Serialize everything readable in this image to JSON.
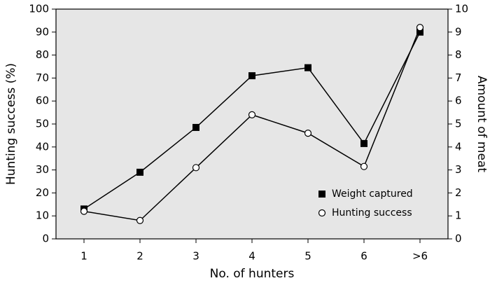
{
  "chart_data": {
    "type": "line",
    "x_label": "No. of hunters",
    "y_label": "Hunting success (%)",
    "y2_label": "Amount of meat",
    "categories": [
      "1",
      "2",
      "3",
      "4",
      "5",
      "6",
      ">6"
    ],
    "series": [
      {
        "name": "Weight captured",
        "color": "#000000",
        "marker": "square",
        "axis": "y2",
        "values": [
          1.3,
          2.9,
          4.85,
          7.1,
          7.45,
          4.15,
          9.0
        ]
      },
      {
        "name": "Hunting success",
        "color": "#000000",
        "marker": "circle",
        "values": [
          12,
          8,
          31,
          54,
          46,
          31.5,
          92
        ]
      }
    ],
    "ylim": [
      0,
      100
    ],
    "yticks": [
      0,
      10,
      20,
      30,
      40,
      50,
      60,
      70,
      80,
      90,
      100
    ],
    "y2lim": [
      0,
      10
    ],
    "y2ticks": [
      0,
      1,
      2,
      3,
      4,
      5,
      6,
      7,
      8,
      9,
      10
    ],
    "legend": "lower right"
  }
}
